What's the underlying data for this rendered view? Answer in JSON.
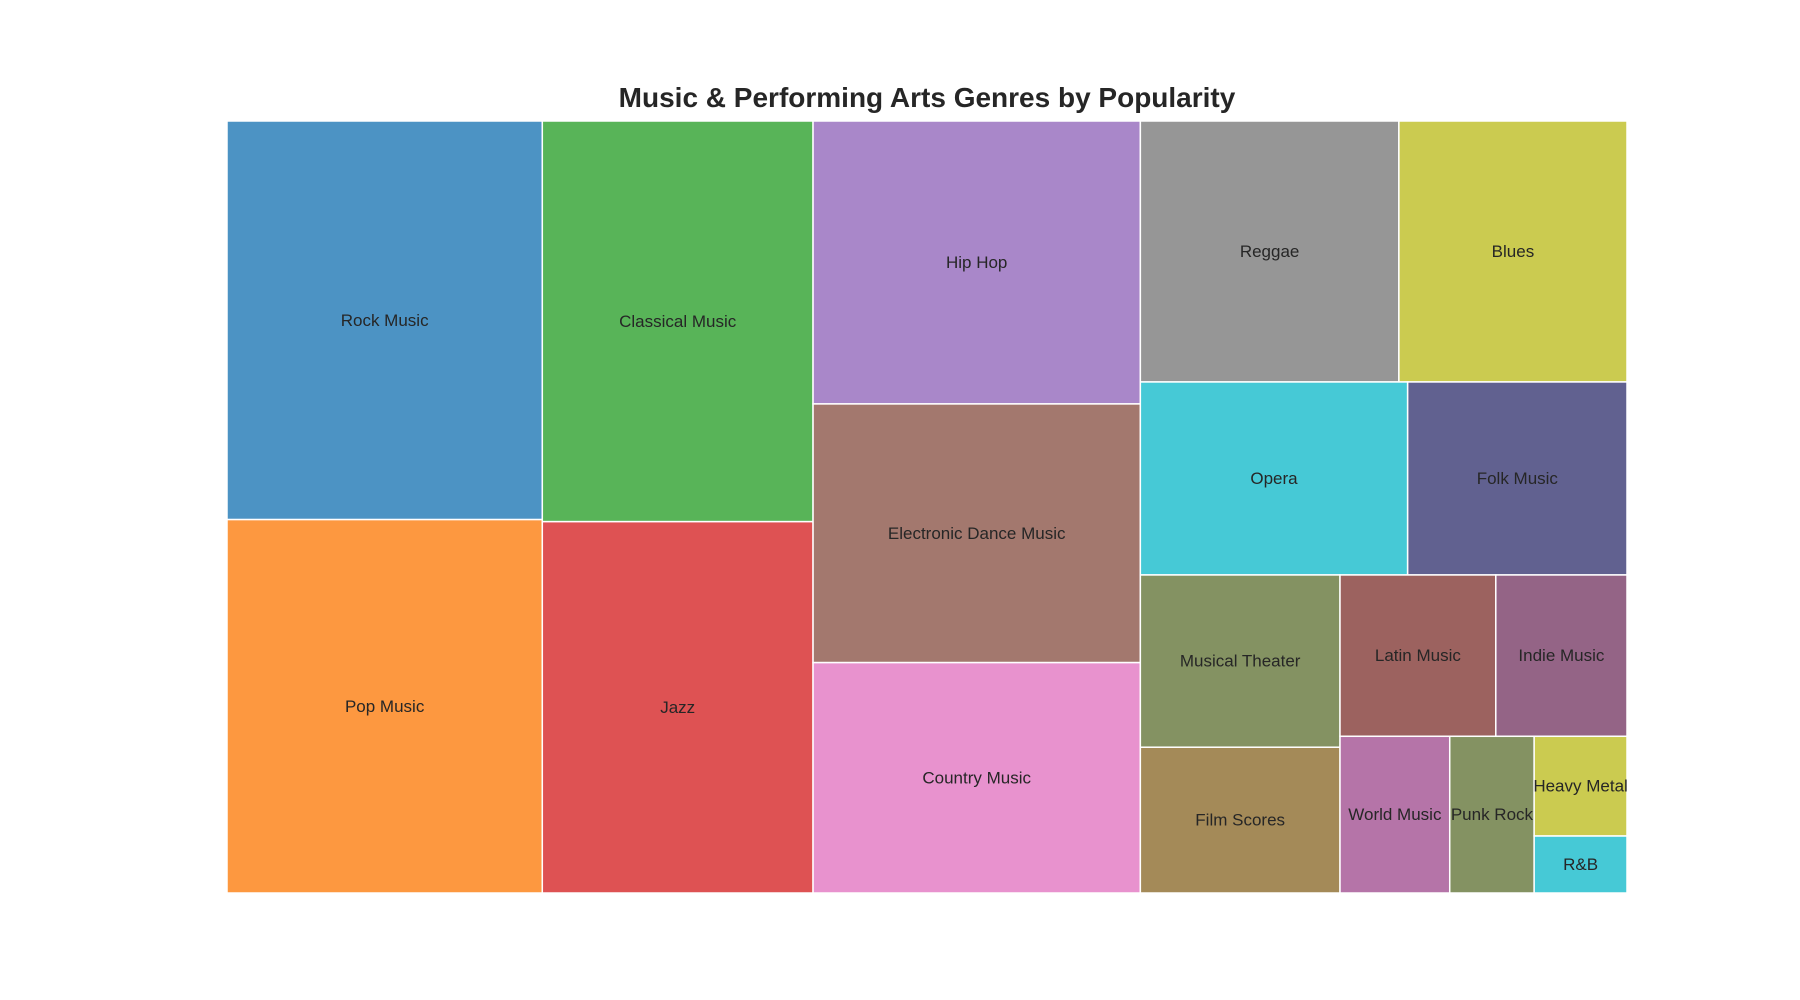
{
  "chart_data": {
    "type": "treemap",
    "title": "Music & Performing Arts Genres by Popularity",
    "items": [
      {
        "label": "Rock Music",
        "value": 95,
        "color": "#4c93c4"
      },
      {
        "label": "Pop Music",
        "value": 89,
        "color": "#fd9840"
      },
      {
        "label": "Classical Music",
        "value": 82,
        "color": "#58b458"
      },
      {
        "label": "Jazz",
        "value": 76,
        "color": "#de5253"
      },
      {
        "label": "Hip Hop",
        "value": 70,
        "color": "#a987c9"
      },
      {
        "label": "Electronic Dance Music",
        "value": 64,
        "color": "#a3786e"
      },
      {
        "label": "Country Music",
        "value": 57,
        "color": "#e892ce"
      },
      {
        "label": "Reggae",
        "value": 51,
        "color": "#969696"
      },
      {
        "label": "Blues",
        "value": 45,
        "color": "#cbcb50"
      },
      {
        "label": "Opera",
        "value": 39,
        "color": "#46c9d6"
      },
      {
        "label": "Folk Music",
        "value": 32,
        "color": "#616190"
      },
      {
        "label": "Musical Theater",
        "value": 26,
        "color": "#849262"
      },
      {
        "label": "Film Scores",
        "value": 22,
        "color": "#a48a58"
      },
      {
        "label": "Latin Music",
        "value": 19,
        "color": "#9c625f"
      },
      {
        "label": "Indie Music",
        "value": 16,
        "color": "#946486"
      },
      {
        "label": "World Music",
        "value": 13,
        "color": "#b574a8"
      },
      {
        "label": "Punk Rock",
        "value": 10,
        "color": "#849262"
      },
      {
        "label": "Heavy Metal",
        "value": 7,
        "color": "#cbcb50"
      },
      {
        "label": "R&B",
        "value": 4,
        "color": "#46c9d6"
      }
    ]
  }
}
